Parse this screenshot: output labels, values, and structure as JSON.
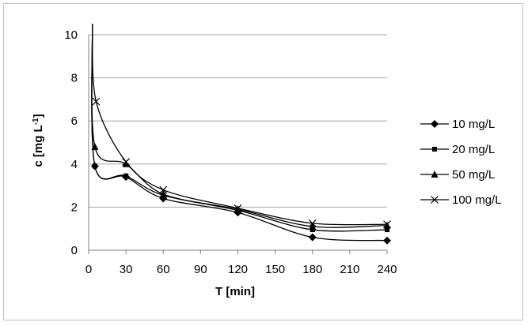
{
  "chart_data": {
    "type": "line",
    "title": "",
    "xlabel": "T [min]",
    "ylabel_main": "c [mg L",
    "ylabel_sup": "-1",
    "ylabel_close": "]",
    "xlim": [
      0,
      240
    ],
    "ylim": [
      0,
      10
    ],
    "xticks": [
      0,
      30,
      60,
      90,
      120,
      150,
      180,
      210,
      240
    ],
    "yticks": [
      0,
      2,
      4,
      6,
      8,
      10
    ],
    "grid": "horizontal",
    "legend_position": "right",
    "series": [
      {
        "name": "10 mg/L",
        "marker": "diamond",
        "x": [
          3,
          5,
          30,
          60,
          120,
          180,
          240
        ],
        "y": [
          10.6,
          3.9,
          3.4,
          2.4,
          1.75,
          0.6,
          0.45
        ]
      },
      {
        "name": "20 mg/L",
        "marker": "square",
        "x": [
          3,
          5,
          30,
          60,
          120,
          180,
          240
        ],
        "y": [
          10.6,
          3.9,
          3.45,
          2.55,
          1.85,
          0.95,
          0.95
        ]
      },
      {
        "name": "50 mg/L",
        "marker": "triangle",
        "x": [
          3,
          5,
          30,
          60,
          120,
          180,
          240
        ],
        "y": [
          10.6,
          4.8,
          4.0,
          2.6,
          1.9,
          1.1,
          1.15
        ]
      },
      {
        "name": "100 mg/L",
        "marker": "x",
        "x": [
          3,
          6,
          30,
          60,
          120,
          180,
          240
        ],
        "y": [
          10.6,
          6.9,
          4.1,
          2.8,
          1.95,
          1.25,
          1.2
        ]
      }
    ]
  }
}
